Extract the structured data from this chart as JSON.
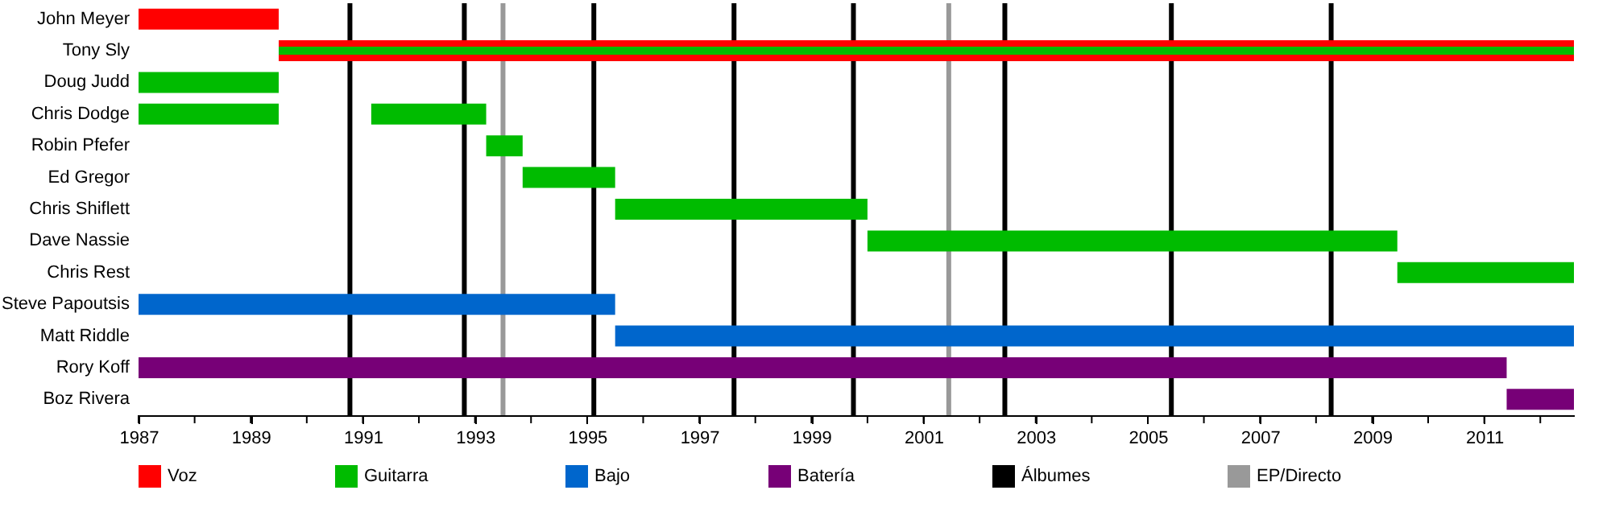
{
  "chart_data": {
    "type": "bar",
    "orientation": "horizontal",
    "categories": [
      "John Meyer",
      "Tony Sly",
      "Doug Judd",
      "Chris Dodge",
      "Robin Pfefer",
      "Ed Gregor",
      "Chris Shiflett",
      "Dave Nassie",
      "Chris Rest",
      "Steve Papoutsis",
      "Matt Riddle",
      "Rory Koff",
      "Boz Rivera"
    ],
    "series": [
      {
        "name": "Voz",
        "color": "#ff0000",
        "base": [
          1987,
          1989.5,
          null,
          null,
          null,
          null,
          null,
          null,
          null,
          null,
          null,
          null,
          null
        ],
        "values": [
          2.5,
          23.1,
          null,
          null,
          null,
          null,
          null,
          null,
          null,
          null,
          null,
          null,
          null
        ]
      },
      {
        "name": "Guitarra",
        "color": "#00bb00",
        "base": [
          null,
          1989.5,
          1987,
          1987,
          1993.2,
          1993.85,
          1995.5,
          2000,
          2009.45,
          null,
          null,
          null,
          null
        ],
        "values": [
          null,
          23.1,
          2.5,
          2.5,
          0.65,
          1.65,
          4.5,
          9.45,
          3.15,
          null,
          null,
          null,
          null
        ]
      },
      {
        "color": "#00bb00",
        "base": [
          null,
          null,
          null,
          1991.15,
          null,
          null,
          null,
          null,
          null,
          null,
          null,
          null,
          null
        ],
        "values": [
          null,
          null,
          null,
          2.05,
          null,
          null,
          null,
          null,
          null,
          null,
          null,
          null,
          null
        ]
      },
      {
        "name": "Bajo",
        "color": "#0066cc",
        "base": [
          null,
          null,
          null,
          null,
          null,
          null,
          null,
          null,
          null,
          1987,
          1995.5,
          null,
          null
        ],
        "values": [
          null,
          null,
          null,
          null,
          null,
          null,
          null,
          null,
          null,
          8.5,
          17.1,
          null,
          null
        ]
      },
      {
        "name": "Batería",
        "color": "#770077",
        "base": [
          null,
          null,
          null,
          null,
          null,
          null,
          null,
          null,
          null,
          null,
          null,
          1987,
          2011.4
        ],
        "values": [
          null,
          null,
          null,
          null,
          null,
          null,
          null,
          null,
          null,
          null,
          null,
          24.4,
          1.2
        ]
      }
    ],
    "xlim": [
      1987,
      2012.6
    ],
    "xticks": [
      1987,
      {
        "value": 1988,
        "label": null
      },
      1989,
      {
        "value": 1990,
        "label": null
      },
      1991,
      {
        "value": 1992,
        "label": null
      },
      1993,
      {
        "value": 1994,
        "label": null
      },
      1995,
      {
        "value": 1996,
        "label": null
      },
      1997,
      {
        "value": 1998,
        "label": null
      },
      1999,
      {
        "value": 2000,
        "label": null
      },
      2001,
      {
        "value": 2002,
        "label": null
      },
      2003,
      {
        "value": 2004,
        "label": null
      },
      2005,
      {
        "value": 2006,
        "label": null
      },
      2007,
      {
        "value": 2008,
        "label": null
      },
      2009,
      {
        "value": 2010,
        "label": null
      },
      2011,
      {
        "value": 2012,
        "label": null
      }
    ],
    "ref_lines": [
      {
        "axis": "x",
        "value": 1990.77,
        "label": "Álbumes",
        "color": "#000000"
      },
      {
        "axis": "x",
        "value": 1992.81,
        "color": "#000000"
      },
      {
        "axis": "x",
        "value": 1995.12,
        "color": "#000000"
      },
      {
        "axis": "x",
        "value": 1997.62,
        "color": "#000000"
      },
      {
        "axis": "x",
        "value": 1999.75,
        "color": "#000000"
      },
      {
        "axis": "x",
        "value": 2002.45,
        "color": "#000000"
      },
      {
        "axis": "x",
        "value": 2005.42,
        "color": "#000000"
      },
      {
        "axis": "x",
        "value": 2008.27,
        "color": "#000000"
      },
      {
        "axis": "x",
        "value": 1993.5,
        "label": "EP/Directo",
        "color": "#999999"
      },
      {
        "axis": "x",
        "value": 2001.45,
        "color": "#999999"
      }
    ],
    "legend": "bottom"
  }
}
